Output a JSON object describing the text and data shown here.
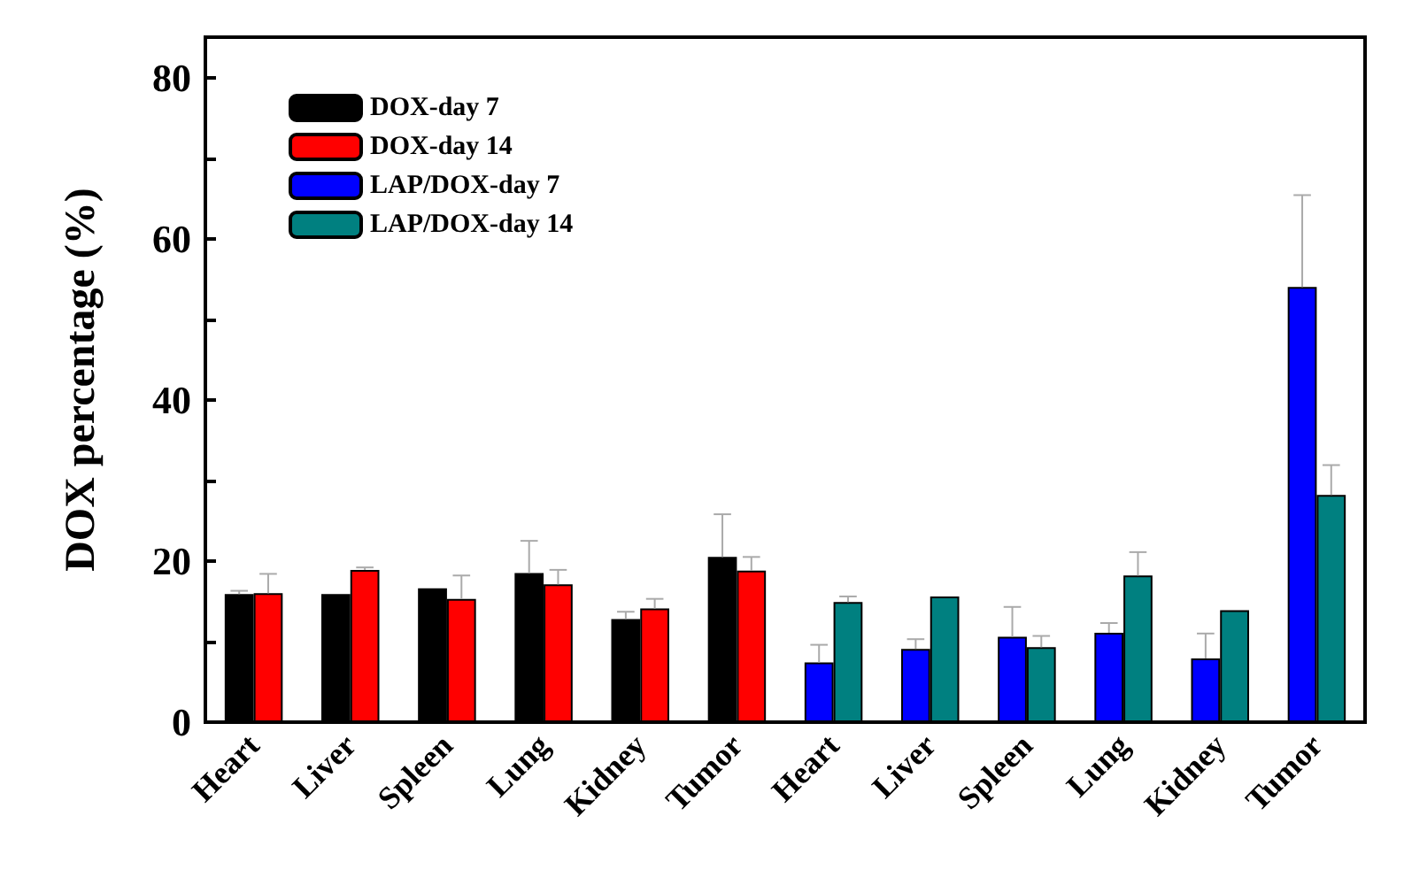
{
  "chart_data": {
    "type": "bar",
    "ylabel": "DOX percentage (%)",
    "categories": [
      "Heart",
      "Liver",
      "Spleen",
      "Lung",
      "Kidney",
      "Tumor",
      "Heart",
      "Liver",
      "Spleen",
      "Lung",
      "Kidney",
      "Tumor"
    ],
    "series": [
      {
        "name": "DOX-day 7",
        "color": "#000000",
        "values": [
          15.9,
          15.9,
          16.6,
          18.5,
          12.8,
          20.5,
          null,
          null,
          null,
          null,
          null,
          null
        ],
        "errors": [
          [
            15.9,
            16.3
          ],
          null,
          null,
          [
            18.5,
            22.5
          ],
          [
            12.8,
            13.7
          ],
          [
            20.5,
            25.8
          ],
          null,
          null,
          null,
          null,
          null,
          null
        ]
      },
      {
        "name": "DOX-day 14",
        "color": "#ff0000",
        "values": [
          16.0,
          18.9,
          15.3,
          17.1,
          14.1,
          18.8,
          null,
          null,
          null,
          null,
          null,
          null
        ],
        "errors": [
          [
            16.0,
            18.4
          ],
          [
            18.9,
            19.2
          ],
          [
            15.3,
            18.2
          ],
          [
            17.1,
            18.9
          ],
          [
            14.1,
            15.3
          ],
          [
            18.8,
            20.5
          ],
          null,
          null,
          null,
          null,
          null,
          null
        ]
      },
      {
        "name": "LAP/DOX-day 7",
        "color": "#0000ff",
        "values": [
          null,
          null,
          null,
          null,
          null,
          null,
          7.4,
          9.1,
          10.6,
          11.1,
          7.9,
          54.0
        ],
        "errors": [
          null,
          null,
          null,
          null,
          null,
          null,
          [
            7.4,
            9.6
          ],
          [
            9.1,
            10.3
          ],
          [
            10.6,
            14.3
          ],
          [
            11.1,
            12.3
          ],
          [
            7.9,
            11.0
          ],
          [
            54.0,
            65.4
          ]
        ]
      },
      {
        "name": "LAP/DOX-day 14",
        "color": "#008080",
        "values": [
          null,
          null,
          null,
          null,
          null,
          null,
          14.9,
          15.6,
          9.3,
          18.2,
          13.9,
          28.2
        ],
        "errors": [
          null,
          null,
          null,
          null,
          null,
          null,
          [
            14.9,
            15.6
          ],
          null,
          [
            9.3,
            10.7
          ],
          [
            18.2,
            21.1
          ],
          null,
          [
            28.2,
            31.9
          ]
        ]
      }
    ],
    "ylim": [
      0,
      85
    ],
    "yticks": [
      0,
      {
        "value": 10,
        "label": null
      },
      20,
      {
        "value": 30,
        "label": null
      },
      40,
      {
        "value": 50,
        "label": null
      },
      60,
      {
        "value": 70,
        "label": null
      },
      80
    ],
    "legend": "top left"
  }
}
